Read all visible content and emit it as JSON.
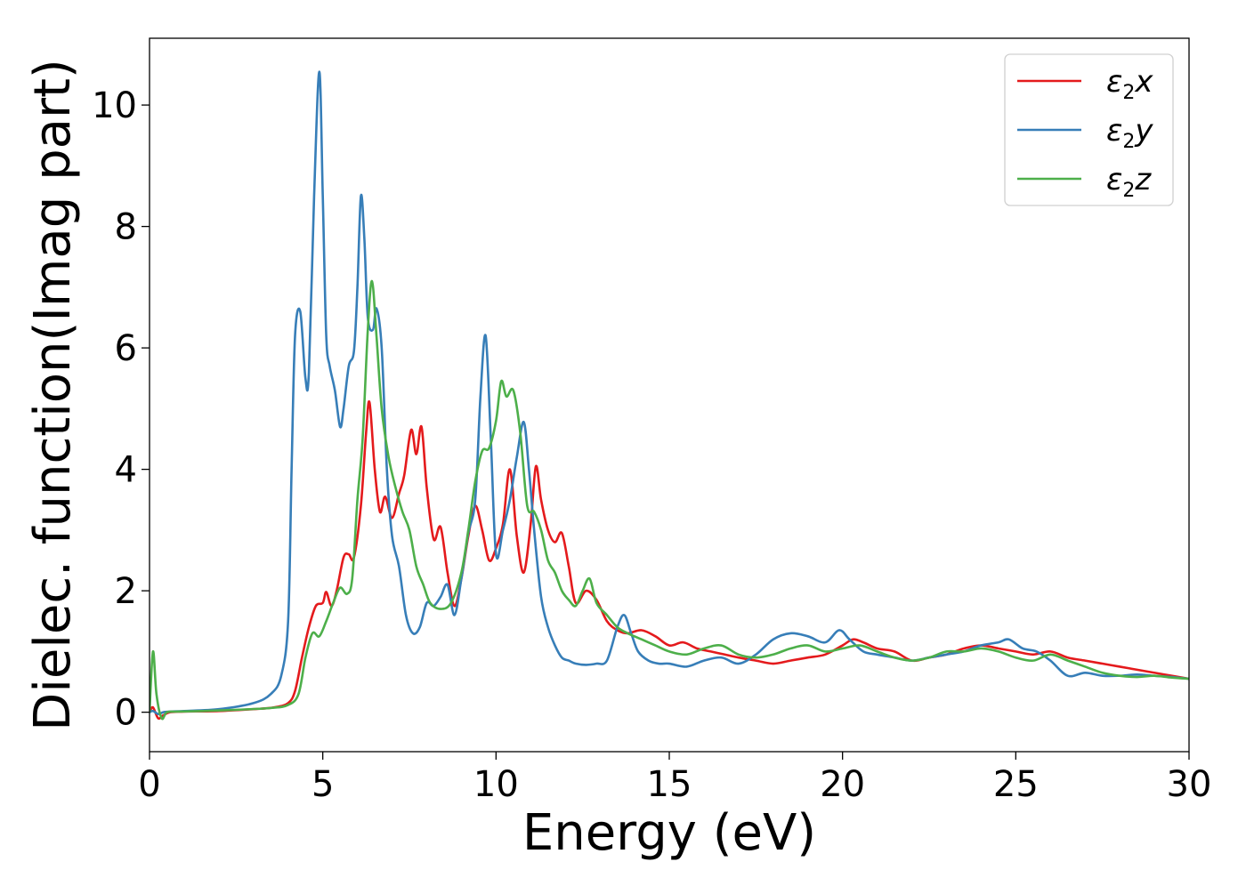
{
  "chart_data": {
    "type": "line",
    "title": "",
    "xlabel": "Energy (eV)",
    "ylabel": "Dielec. function(Imag part)",
    "xlim": [
      0,
      30
    ],
    "ylim": [
      -0.65,
      11.1
    ],
    "xticks": [
      0,
      5,
      10,
      15,
      20,
      25,
      30
    ],
    "yticks": [
      0,
      2,
      4,
      6,
      8,
      10
    ],
    "grid": false,
    "legend_position": "top-right",
    "series": [
      {
        "name": "ε₂x",
        "label_main": "ε",
        "label_sub": "2",
        "label_tail": "x",
        "color": "#e41a1c",
        "x": [
          0,
          0.1,
          0.25,
          0.4,
          0.6,
          1.0,
          2.0,
          3.0,
          3.6,
          4.0,
          4.2,
          4.4,
          4.6,
          4.8,
          5.0,
          5.1,
          5.25,
          5.4,
          5.6,
          5.75,
          5.9,
          6.1,
          6.25,
          6.35,
          6.5,
          6.65,
          6.8,
          7.0,
          7.2,
          7.35,
          7.55,
          7.7,
          7.85,
          8.0,
          8.2,
          8.4,
          8.6,
          8.8,
          9.0,
          9.2,
          9.4,
          9.6,
          9.8,
          10.0,
          10.2,
          10.4,
          10.6,
          10.8,
          11.0,
          11.15,
          11.3,
          11.5,
          11.7,
          11.9,
          12.1,
          12.3,
          12.6,
          12.9,
          13.2,
          13.5,
          13.8,
          14.2,
          14.6,
          15.0,
          15.4,
          15.8,
          16.2,
          16.6,
          17.0,
          17.5,
          18.0,
          18.5,
          19.0,
          19.5,
          20.0,
          20.3,
          20.6,
          21.0,
          21.5,
          22.0,
          22.5,
          23.0,
          23.5,
          24.0,
          24.5,
          25.0,
          25.5,
          26.0,
          26.5,
          27.0,
          27.5,
          28.0,
          28.5,
          29.0,
          29.5,
          30.0
        ],
        "y": [
          0.0,
          0.08,
          -0.1,
          -0.05,
          0.0,
          0.01,
          0.02,
          0.05,
          0.08,
          0.15,
          0.35,
          0.9,
          1.4,
          1.75,
          1.8,
          1.98,
          1.75,
          2.0,
          2.55,
          2.6,
          2.55,
          3.4,
          4.6,
          5.1,
          4.0,
          3.3,
          3.55,
          3.2,
          3.6,
          3.9,
          4.65,
          4.25,
          4.7,
          3.7,
          2.85,
          3.05,
          2.3,
          1.75,
          2.2,
          2.9,
          3.4,
          3.0,
          2.5,
          2.7,
          3.1,
          4.0,
          2.9,
          2.3,
          3.1,
          4.05,
          3.5,
          3.0,
          2.8,
          2.95,
          2.4,
          1.8,
          2.0,
          1.85,
          1.5,
          1.35,
          1.3,
          1.35,
          1.25,
          1.1,
          1.15,
          1.05,
          1.0,
          0.95,
          0.9,
          0.85,
          0.8,
          0.85,
          0.9,
          0.95,
          1.1,
          1.2,
          1.15,
          1.05,
          1.0,
          0.85,
          0.9,
          0.95,
          1.05,
          1.1,
          1.05,
          1.0,
          0.95,
          1.0,
          0.9,
          0.85,
          0.8,
          0.75,
          0.7,
          0.65,
          0.6,
          0.55
        ]
      },
      {
        "name": "ε₂y",
        "label_main": "ε",
        "label_sub": "2",
        "label_tail": "y",
        "color": "#377eb8",
        "x": [
          0,
          0.1,
          0.25,
          0.4,
          0.6,
          1.0,
          2.0,
          3.0,
          3.5,
          3.8,
          4.0,
          4.1,
          4.2,
          4.35,
          4.5,
          4.6,
          4.75,
          4.9,
          5.0,
          5.1,
          5.2,
          5.35,
          5.5,
          5.6,
          5.75,
          5.9,
          6.0,
          6.1,
          6.2,
          6.3,
          6.45,
          6.55,
          6.7,
          6.85,
          7.0,
          7.2,
          7.4,
          7.6,
          7.8,
          8.0,
          8.2,
          8.4,
          8.6,
          8.8,
          9.0,
          9.2,
          9.4,
          9.55,
          9.7,
          9.85,
          10.0,
          10.2,
          10.4,
          10.6,
          10.8,
          10.95,
          11.1,
          11.3,
          11.5,
          11.7,
          11.9,
          12.1,
          12.3,
          12.6,
          12.9,
          13.2,
          13.5,
          13.7,
          13.9,
          14.1,
          14.4,
          14.7,
          15.0,
          15.5,
          16.0,
          16.5,
          17.0,
          17.5,
          18.0,
          18.5,
          19.0,
          19.5,
          19.9,
          20.2,
          20.6,
          21.0,
          21.5,
          22.0,
          22.5,
          23.0,
          23.5,
          24.0,
          24.5,
          24.8,
          25.2,
          25.6,
          26.0,
          26.5,
          27.0,
          27.5,
          28.0,
          28.5,
          29.0,
          29.5,
          30.0
        ],
        "y": [
          0.0,
          0.02,
          -0.03,
          0.0,
          0.01,
          0.02,
          0.05,
          0.15,
          0.3,
          0.6,
          1.5,
          4.0,
          6.2,
          6.6,
          5.5,
          5.6,
          8.5,
          10.55,
          8.5,
          6.2,
          5.7,
          5.3,
          4.7,
          5.0,
          5.7,
          5.95,
          7.0,
          8.5,
          7.8,
          6.5,
          6.3,
          6.65,
          6.0,
          4.0,
          2.9,
          2.4,
          1.6,
          1.3,
          1.4,
          1.8,
          1.75,
          1.9,
          2.1,
          1.6,
          2.2,
          2.95,
          3.5,
          5.2,
          6.2,
          4.5,
          2.6,
          3.0,
          3.5,
          4.2,
          4.78,
          4.0,
          3.0,
          1.9,
          1.4,
          1.1,
          0.9,
          0.85,
          0.8,
          0.78,
          0.8,
          0.85,
          1.4,
          1.6,
          1.3,
          1.0,
          0.85,
          0.8,
          0.8,
          0.75,
          0.85,
          0.9,
          0.8,
          0.95,
          1.2,
          1.3,
          1.25,
          1.15,
          1.35,
          1.2,
          1.0,
          0.95,
          0.9,
          0.85,
          0.9,
          0.95,
          1.0,
          1.1,
          1.15,
          1.2,
          1.05,
          1.0,
          0.85,
          0.6,
          0.65,
          0.6,
          0.6,
          0.62,
          0.6,
          0.58,
          0.55
        ]
      },
      {
        "name": "ε₂z",
        "label_main": "ε",
        "label_sub": "2",
        "label_tail": "z",
        "color": "#4daf4a",
        "x": [
          0,
          0.1,
          0.2,
          0.35,
          0.5,
          0.8,
          1.5,
          2.5,
          3.5,
          4.0,
          4.3,
          4.5,
          4.7,
          4.9,
          5.1,
          5.3,
          5.5,
          5.7,
          5.85,
          6.0,
          6.15,
          6.3,
          6.42,
          6.55,
          6.7,
          6.9,
          7.1,
          7.3,
          7.5,
          7.7,
          7.9,
          8.1,
          8.4,
          8.7,
          9.0,
          9.2,
          9.4,
          9.6,
          9.8,
          10.0,
          10.15,
          10.3,
          10.5,
          10.7,
          10.9,
          11.1,
          11.3,
          11.5,
          11.7,
          11.9,
          12.1,
          12.3,
          12.5,
          12.7,
          12.9,
          13.2,
          13.5,
          13.8,
          14.2,
          14.6,
          15.0,
          15.5,
          16.0,
          16.5,
          17.0,
          17.5,
          18.0,
          18.5,
          19.0,
          19.5,
          20.0,
          20.5,
          21.0,
          21.5,
          22.0,
          22.5,
          23.0,
          23.5,
          24.0,
          24.5,
          25.0,
          25.5,
          26.0,
          26.5,
          27.0,
          27.5,
          28.0,
          28.5,
          29.0,
          29.5,
          30.0
        ],
        "y": [
          0.0,
          1.0,
          0.3,
          -0.1,
          0.0,
          0.01,
          0.02,
          0.04,
          0.07,
          0.12,
          0.3,
          0.9,
          1.3,
          1.25,
          1.5,
          1.8,
          2.05,
          1.95,
          2.2,
          3.5,
          4.5,
          6.3,
          7.1,
          6.2,
          5.0,
          4.2,
          3.7,
          3.3,
          3.0,
          2.4,
          2.1,
          1.8,
          1.7,
          1.8,
          2.3,
          3.0,
          3.8,
          4.3,
          4.35,
          4.8,
          5.45,
          5.2,
          5.3,
          4.6,
          3.4,
          3.3,
          3.0,
          2.5,
          2.3,
          2.0,
          1.85,
          1.75,
          2.0,
          2.2,
          1.8,
          1.6,
          1.4,
          1.3,
          1.2,
          1.1,
          1.0,
          0.95,
          1.05,
          1.1,
          0.95,
          0.9,
          0.95,
          1.05,
          1.1,
          1.0,
          1.05,
          1.1,
          1.0,
          0.9,
          0.85,
          0.9,
          1.0,
          1.0,
          1.05,
          1.0,
          0.9,
          0.85,
          0.95,
          0.85,
          0.75,
          0.65,
          0.6,
          0.58,
          0.6,
          0.57,
          0.55
        ]
      }
    ]
  }
}
